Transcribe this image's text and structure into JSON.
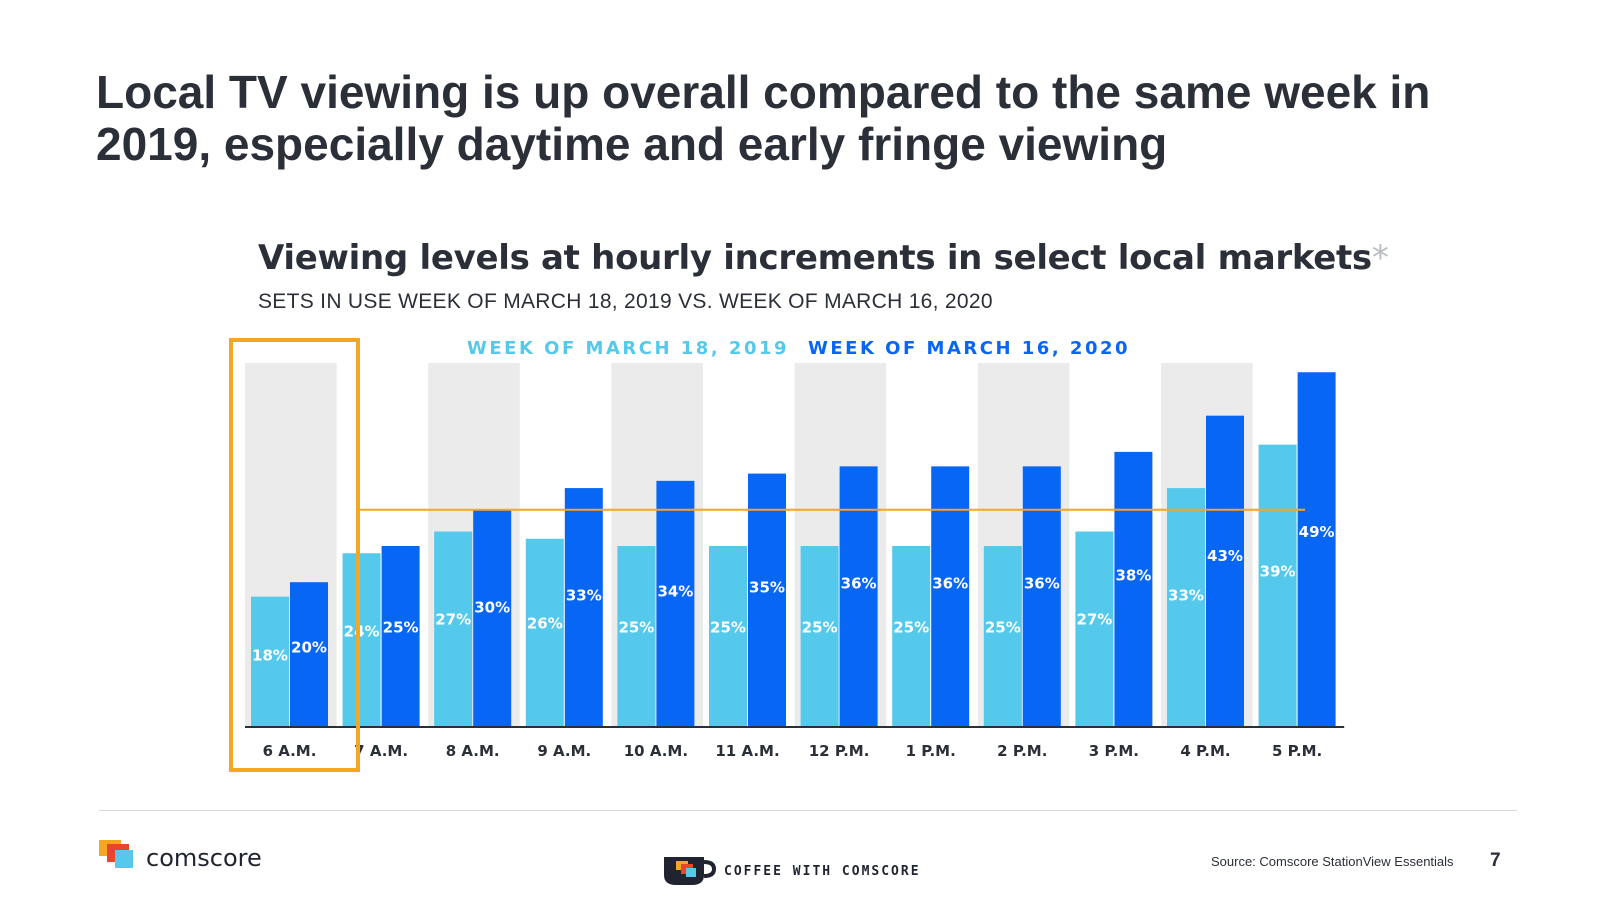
{
  "slide": {
    "title": "Local TV viewing is up overall compared to the same week in 2019, especially daytime and early fringe viewing",
    "page_number": "7"
  },
  "footer": {
    "brand": "comscore",
    "coffee_label": "COFFEE WITH COMSCORE",
    "source": "Source: Comscore StationView Essentials"
  },
  "colors": {
    "series_2019": "#55c9eb",
    "series_2020": "#0866f5",
    "band": "#ebebeb",
    "highlight": "#f5a623"
  },
  "chart_data": {
    "type": "bar",
    "title": "Viewing levels at hourly increments in select local markets",
    "title_marker": "*",
    "subtitle": "SETS IN USE WEEK OF MARCH 18, 2019 VS. WEEK OF MARCH 16, 2020",
    "categories": [
      "6 A.M.",
      "7 A.M.",
      "8 A.M.",
      "9 A.M.",
      "10 A.M.",
      "11 A.M.",
      "12 P.M.",
      "1 P.M.",
      "2 P.M.",
      "3 P.M.",
      "4 P.M.",
      "5 P.M."
    ],
    "series": [
      {
        "name": "WEEK OF MARCH 18, 2019",
        "values": [
          18,
          24,
          27,
          26,
          25,
          25,
          25,
          25,
          25,
          27,
          33,
          39
        ]
      },
      {
        "name": "WEEK OF MARCH 16, 2020",
        "values": [
          20,
          25,
          30,
          33,
          34,
          35,
          36,
          36,
          36,
          38,
          43,
          49
        ]
      }
    ],
    "value_suffix": "%",
    "ylim": [
      0,
      50
    ],
    "reference_line_value": 30,
    "highlighted_category": "6 A.M.",
    "legend_position": "top",
    "xlabel": "",
    "ylabel": ""
  }
}
